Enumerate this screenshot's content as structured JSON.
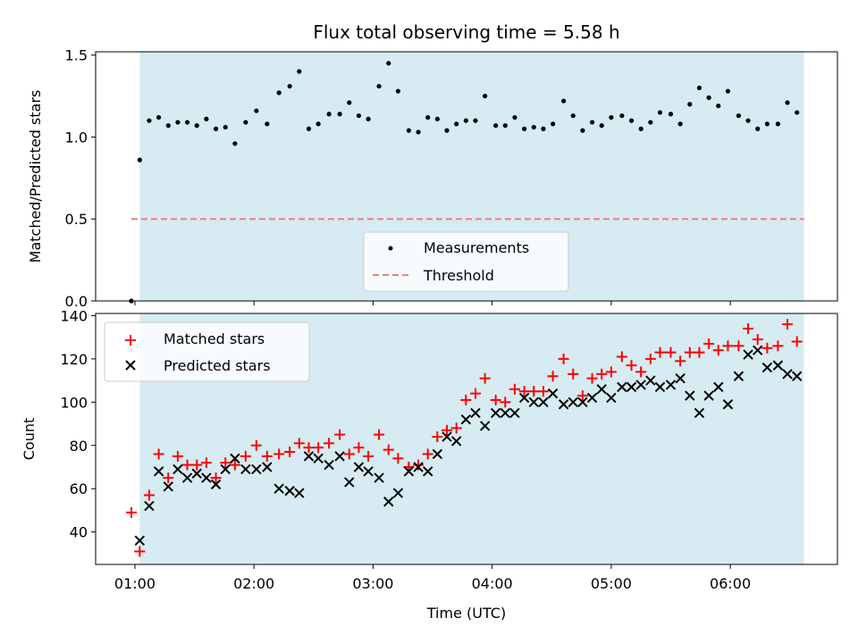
{
  "chart_data": [
    {
      "type": "scatter",
      "title": "Flux total observing time = 5.58 h",
      "ylabel": "Matched/Predicted stars",
      "xlabel": "",
      "ylim": [
        0,
        1.52
      ],
      "y_ticks": [
        "0.0",
        "0.5",
        "1.0",
        "1.5"
      ],
      "y_tick_values": [
        0,
        0.5,
        1.0,
        1.5
      ],
      "x_tick_values": [
        1,
        2,
        3,
        4,
        5,
        6
      ],
      "xlim_hours": [
        0.67,
        6.9
      ],
      "shaded_span_hours": [
        1.04,
        6.62
      ],
      "shade_color": "#add8e6",
      "legend": {
        "placement": "lower-center",
        "measurements_label": "Measurements",
        "threshold_label": "Threshold"
      },
      "threshold": {
        "value": 0.5,
        "color": "#f08080",
        "x_range": [
          0.97,
          6.62
        ]
      },
      "series": [
        {
          "name": "Measurements",
          "color": "#000000",
          "points": [
            [
              0.97,
              0.0
            ],
            [
              1.04,
              0.86
            ],
            [
              1.12,
              1.1
            ],
            [
              1.2,
              1.12
            ],
            [
              1.28,
              1.07
            ],
            [
              1.36,
              1.09
            ],
            [
              1.44,
              1.09
            ],
            [
              1.52,
              1.07
            ],
            [
              1.6,
              1.11
            ],
            [
              1.68,
              1.05
            ],
            [
              1.76,
              1.06
            ],
            [
              1.84,
              0.96
            ],
            [
              1.93,
              1.09
            ],
            [
              2.02,
              1.16
            ],
            [
              2.11,
              1.08
            ],
            [
              2.21,
              1.27
            ],
            [
              2.3,
              1.31
            ],
            [
              2.38,
              1.4
            ],
            [
              2.46,
              1.05
            ],
            [
              2.54,
              1.08
            ],
            [
              2.63,
              1.14
            ],
            [
              2.72,
              1.14
            ],
            [
              2.8,
              1.21
            ],
            [
              2.88,
              1.13
            ],
            [
              2.96,
              1.11
            ],
            [
              3.05,
              1.31
            ],
            [
              3.13,
              1.45
            ],
            [
              3.21,
              1.28
            ],
            [
              3.3,
              1.04
            ],
            [
              3.38,
              1.03
            ],
            [
              3.46,
              1.12
            ],
            [
              3.54,
              1.11
            ],
            [
              3.62,
              1.04
            ],
            [
              3.7,
              1.08
            ],
            [
              3.78,
              1.1
            ],
            [
              3.86,
              1.1
            ],
            [
              3.94,
              1.25
            ],
            [
              4.03,
              1.07
            ],
            [
              4.11,
              1.07
            ],
            [
              4.19,
              1.12
            ],
            [
              4.27,
              1.05
            ],
            [
              4.35,
              1.06
            ],
            [
              4.43,
              1.05
            ],
            [
              4.51,
              1.08
            ],
            [
              4.6,
              1.22
            ],
            [
              4.68,
              1.13
            ],
            [
              4.76,
              1.04
            ],
            [
              4.84,
              1.09
            ],
            [
              4.92,
              1.07
            ],
            [
              5.0,
              1.12
            ],
            [
              5.09,
              1.13
            ],
            [
              5.17,
              1.1
            ],
            [
              5.25,
              1.05
            ],
            [
              5.33,
              1.09
            ],
            [
              5.41,
              1.15
            ],
            [
              5.5,
              1.14
            ],
            [
              5.58,
              1.08
            ],
            [
              5.66,
              1.2
            ],
            [
              5.74,
              1.3
            ],
            [
              5.82,
              1.24
            ],
            [
              5.9,
              1.19
            ],
            [
              5.98,
              1.28
            ],
            [
              6.07,
              1.13
            ],
            [
              6.15,
              1.1
            ],
            [
              6.23,
              1.05
            ],
            [
              6.31,
              1.08
            ],
            [
              6.4,
              1.08
            ],
            [
              6.48,
              1.21
            ],
            [
              6.56,
              1.15
            ]
          ]
        }
      ]
    },
    {
      "type": "scatter",
      "title": "",
      "ylabel": "Count",
      "xlabel": "Time (UTC)",
      "ylim": [
        25,
        141
      ],
      "y_ticks": [
        "40",
        "60",
        "80",
        "100",
        "120",
        "140"
      ],
      "y_tick_values": [
        40,
        60,
        80,
        100,
        120,
        140
      ],
      "x_ticks": [
        "01:00",
        "02:00",
        "03:00",
        "04:00",
        "05:00",
        "06:00"
      ],
      "x_tick_values": [
        1,
        2,
        3,
        4,
        5,
        6
      ],
      "xlim_hours": [
        0.67,
        6.9
      ],
      "shaded_span_hours": [
        1.04,
        6.62
      ],
      "shade_color": "#add8e6",
      "legend": {
        "placement": "upper-left",
        "matched_label": "Matched stars",
        "predicted_label": "Predicted stars"
      },
      "series": [
        {
          "name": "Matched stars",
          "color": "#ff0000",
          "marker": "plus",
          "points": [
            [
              0.97,
              49
            ],
            [
              1.04,
              31
            ],
            [
              1.12,
              57
            ],
            [
              1.2,
              76
            ],
            [
              1.28,
              65
            ],
            [
              1.36,
              75
            ],
            [
              1.44,
              71
            ],
            [
              1.52,
              71
            ],
            [
              1.6,
              72
            ],
            [
              1.68,
              65
            ],
            [
              1.76,
              72
            ],
            [
              1.84,
              71
            ],
            [
              1.93,
              75
            ],
            [
              2.02,
              80
            ],
            [
              2.11,
              75
            ],
            [
              2.21,
              76
            ],
            [
              2.3,
              77
            ],
            [
              2.38,
              81
            ],
            [
              2.46,
              79
            ],
            [
              2.54,
              79
            ],
            [
              2.63,
              81
            ],
            [
              2.72,
              85
            ],
            [
              2.8,
              76
            ],
            [
              2.88,
              79
            ],
            [
              2.96,
              75
            ],
            [
              3.05,
              85
            ],
            [
              3.13,
              78
            ],
            [
              3.21,
              74
            ],
            [
              3.3,
              70
            ],
            [
              3.38,
              71
            ],
            [
              3.46,
              76
            ],
            [
              3.54,
              84
            ],
            [
              3.62,
              87
            ],
            [
              3.7,
              88
            ],
            [
              3.78,
              101
            ],
            [
              3.86,
              104
            ],
            [
              3.94,
              111
            ],
            [
              4.03,
              101
            ],
            [
              4.11,
              100
            ],
            [
              4.19,
              106
            ],
            [
              4.27,
              105
            ],
            [
              4.35,
              105
            ],
            [
              4.43,
              105
            ],
            [
              4.51,
              112
            ],
            [
              4.6,
              120
            ],
            [
              4.68,
              113
            ],
            [
              4.76,
              103
            ],
            [
              4.84,
              111
            ],
            [
              4.92,
              113
            ],
            [
              5.0,
              114
            ],
            [
              5.09,
              121
            ],
            [
              5.17,
              117
            ],
            [
              5.25,
              114
            ],
            [
              5.33,
              120
            ],
            [
              5.41,
              123
            ],
            [
              5.5,
              123
            ],
            [
              5.58,
              119
            ],
            [
              5.66,
              123
            ],
            [
              5.74,
              123
            ],
            [
              5.82,
              127
            ],
            [
              5.9,
              124
            ],
            [
              5.98,
              126
            ],
            [
              6.07,
              126
            ],
            [
              6.15,
              134
            ],
            [
              6.23,
              129
            ],
            [
              6.31,
              125
            ],
            [
              6.4,
              126
            ],
            [
              6.48,
              136
            ],
            [
              6.56,
              128
            ]
          ]
        },
        {
          "name": "Predicted stars",
          "color": "#000000",
          "marker": "x",
          "points": [
            [
              1.04,
              36
            ],
            [
              1.12,
              52
            ],
            [
              1.2,
              68
            ],
            [
              1.28,
              61
            ],
            [
              1.36,
              69
            ],
            [
              1.44,
              65
            ],
            [
              1.52,
              67
            ],
            [
              1.6,
              65
            ],
            [
              1.68,
              62
            ],
            [
              1.76,
              69
            ],
            [
              1.84,
              74
            ],
            [
              1.93,
              69
            ],
            [
              2.02,
              69
            ],
            [
              2.11,
              70
            ],
            [
              2.21,
              60
            ],
            [
              2.3,
              59
            ],
            [
              2.38,
              58
            ],
            [
              2.46,
              75
            ],
            [
              2.54,
              74
            ],
            [
              2.63,
              71
            ],
            [
              2.72,
              75
            ],
            [
              2.8,
              63
            ],
            [
              2.88,
              70
            ],
            [
              2.96,
              68
            ],
            [
              3.05,
              65
            ],
            [
              3.13,
              54
            ],
            [
              3.21,
              58
            ],
            [
              3.3,
              68
            ],
            [
              3.38,
              70
            ],
            [
              3.46,
              68
            ],
            [
              3.54,
              76
            ],
            [
              3.62,
              84
            ],
            [
              3.7,
              82
            ],
            [
              3.78,
              92
            ],
            [
              3.86,
              95
            ],
            [
              3.94,
              89
            ],
            [
              4.03,
              95
            ],
            [
              4.11,
              95
            ],
            [
              4.19,
              95
            ],
            [
              4.27,
              102
            ],
            [
              4.35,
              100
            ],
            [
              4.43,
              100
            ],
            [
              4.51,
              104
            ],
            [
              4.6,
              99
            ],
            [
              4.68,
              100
            ],
            [
              4.76,
              100
            ],
            [
              4.84,
              102
            ],
            [
              4.92,
              106
            ],
            [
              5.0,
              102
            ],
            [
              5.09,
              107
            ],
            [
              5.17,
              107
            ],
            [
              5.25,
              108
            ],
            [
              5.33,
              110
            ],
            [
              5.41,
              107
            ],
            [
              5.5,
              108
            ],
            [
              5.58,
              111
            ],
            [
              5.66,
              103
            ],
            [
              5.74,
              95
            ],
            [
              5.82,
              103
            ],
            [
              5.9,
              107
            ],
            [
              5.98,
              99
            ],
            [
              6.07,
              112
            ],
            [
              6.15,
              122
            ],
            [
              6.23,
              124
            ],
            [
              6.31,
              116
            ],
            [
              6.4,
              117
            ],
            [
              6.48,
              113
            ],
            [
              6.56,
              112
            ]
          ]
        }
      ]
    }
  ]
}
